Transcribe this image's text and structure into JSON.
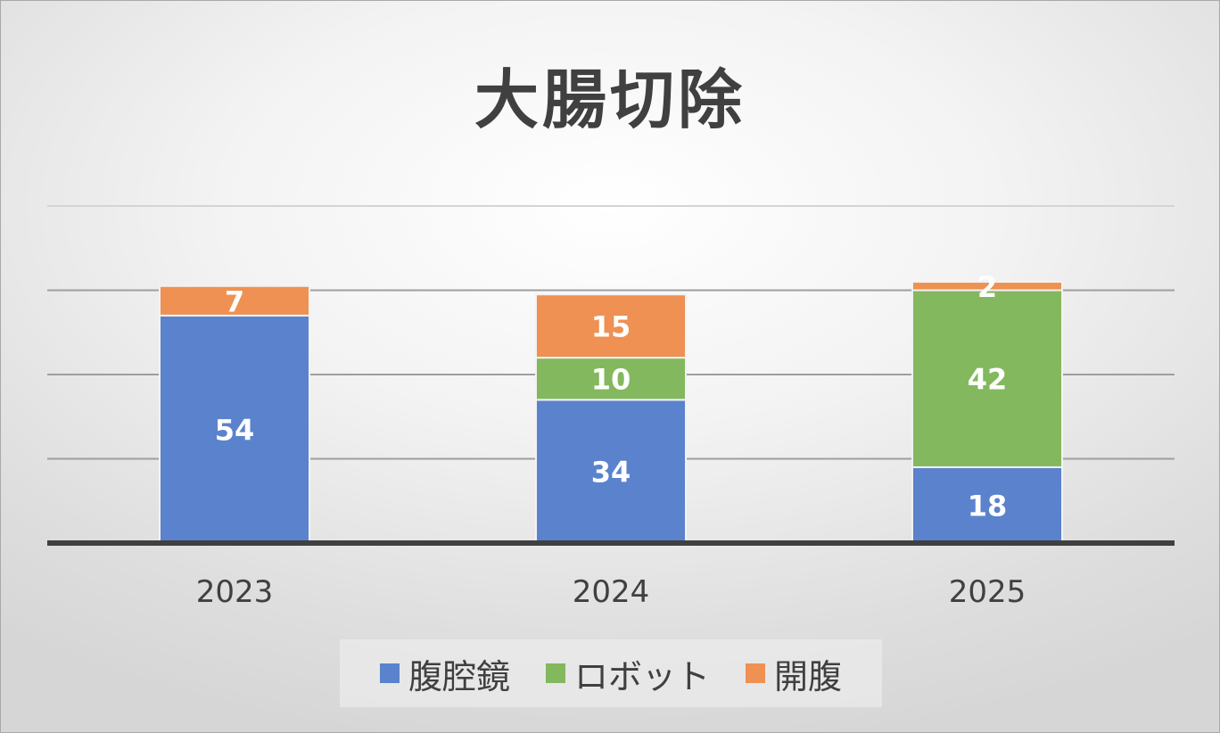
{
  "chart_data": {
    "type": "bar",
    "stacked": true,
    "title": "大腸切除",
    "categories": [
      "2023",
      "2024",
      "2025"
    ],
    "series": [
      {
        "name": "腹腔鏡",
        "color": "#5b82cc",
        "values": [
          54,
          34,
          18
        ]
      },
      {
        "name": "ロボット",
        "color": "#83b85e",
        "values": [
          0,
          10,
          42
        ]
      },
      {
        "name": "開腹",
        "color": "#ee9152",
        "values": [
          7,
          15,
          2
        ]
      }
    ],
    "ylim": [
      0,
      80
    ],
    "gridlines": [
      20,
      40,
      60,
      80
    ],
    "grid": true,
    "legend_position": "bottom",
    "xlabel": "",
    "ylabel": ""
  }
}
